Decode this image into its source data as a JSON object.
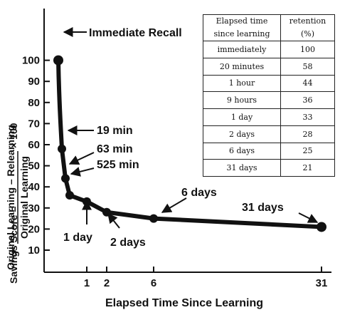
{
  "chart_data": {
    "type": "line",
    "title": "",
    "xlabel": "Elapsed Time Since Learning",
    "ylabel": {
      "prefix": "Savings Score =",
      "numerator": "Original Learning – Relearning",
      "denominator": "Original Learning",
      "suffix": "× 100"
    },
    "ylim": [
      0,
      105
    ],
    "yticks": [
      10,
      20,
      30,
      40,
      50,
      60,
      70,
      80,
      90,
      100
    ],
    "xticks": [
      {
        "x": 1,
        "label": "1"
      },
      {
        "x": 2,
        "label": "2"
      },
      {
        "x": 6,
        "label": "6"
      },
      {
        "x": 31,
        "label": "31"
      }
    ],
    "series": [
      {
        "points": [
          {
            "x": 0,
            "y": 100
          },
          {
            "x": 0.0139,
            "y": 58
          },
          {
            "x": 0.0417,
            "y": 44
          },
          {
            "x": 0.375,
            "y": 36
          },
          {
            "x": 1,
            "y": 33
          },
          {
            "x": 2,
            "y": 28
          },
          {
            "x": 6,
            "y": 25
          },
          {
            "x": 31,
            "y": 21
          }
        ]
      }
    ],
    "annotations": [
      {
        "label": "Immediate Recall",
        "x": 0,
        "y": 100
      },
      {
        "label": "19 min",
        "x": 0.0139,
        "y": 58
      },
      {
        "label": "63 min",
        "x": 0.0417,
        "y": 44
      },
      {
        "label": "525 min",
        "x": 0.375,
        "y": 36
      },
      {
        "label": "1 day",
        "x": 1,
        "y": 33
      },
      {
        "label": "2 days",
        "x": 2,
        "y": 28
      },
      {
        "label": "6 days",
        "x": 6,
        "y": 25
      },
      {
        "label": "31 days",
        "x": 31,
        "y": 21
      }
    ]
  },
  "table": {
    "headers": [
      [
        "Elapsed time",
        "since learning"
      ],
      [
        "retention",
        "(%)"
      ]
    ],
    "rows": [
      [
        "immediately",
        "100"
      ],
      [
        "20 minutes",
        "58"
      ],
      [
        "1 hour",
        "44"
      ],
      [
        "9 hours",
        "36"
      ],
      [
        "1 day",
        "33"
      ],
      [
        "2 days",
        "28"
      ],
      [
        "6 days",
        "25"
      ],
      [
        "31 days",
        "21"
      ]
    ]
  }
}
